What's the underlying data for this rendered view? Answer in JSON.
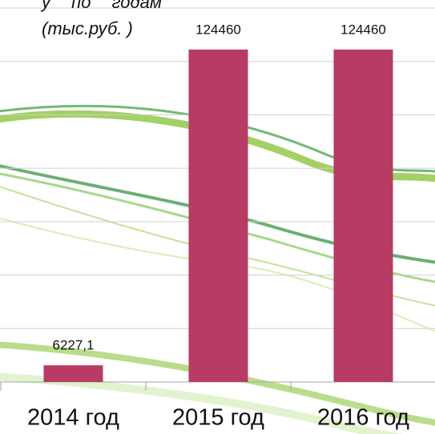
{
  "chart_data": {
    "type": "bar",
    "title": "у по годам (тыс.руб. )",
    "categories": [
      "2014 год",
      "2015 год",
      "2016 год"
    ],
    "values": [
      6227.1,
      124460,
      124460
    ],
    "value_labels": [
      "6227,1",
      "124460",
      "124460"
    ],
    "color": "#b83b63",
    "ylim": [
      0,
      143000
    ],
    "yticks": [
      0,
      20000,
      40000,
      60000,
      80000,
      100000,
      120000,
      140000
    ],
    "grid": true
  }
}
